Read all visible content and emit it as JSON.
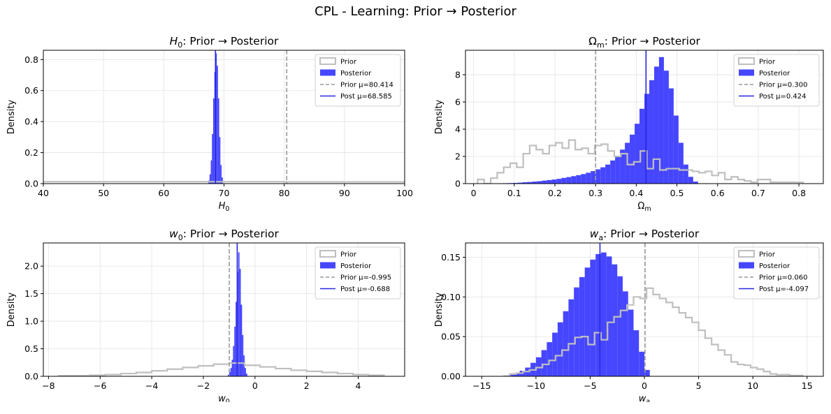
{
  "suptitle": "CPL - Learning: Prior → Posterior",
  "colors": {
    "prior": "#bfbfbf",
    "posterior": "#4646ff",
    "prior_mean_line": "#999999",
    "post_mean_line": "#2828e0",
    "grid": "#e3e3e3"
  },
  "chart_data": [
    {
      "type": "histogram",
      "title_var": "H",
      "title_sub": "0",
      "title_rest": ": Prior → Posterior",
      "xlabel_var": "H",
      "xlabel_sub": "0",
      "ylabel": "Density",
      "xlim": [
        40,
        100
      ],
      "ylim": [
        0,
        0.86
      ],
      "xticks": [
        40,
        50,
        60,
        70,
        80,
        90,
        100
      ],
      "yticks": [
        0.0,
        0.2,
        0.4,
        0.6,
        0.8
      ],
      "ytick_decimals": 1,
      "grid": true,
      "legend_position": "upper right",
      "legend": [
        "Prior",
        "Posterior",
        "Prior μ=80.414",
        "Post μ=68.585"
      ],
      "prior_mean": 80.414,
      "post_mean": 68.585,
      "prior_hist": {
        "edges": [
          20,
          40,
          50,
          60,
          70,
          80,
          90,
          100,
          120
        ],
        "heights": [
          0.012,
          0.012,
          0.012,
          0.012,
          0.012,
          0.011,
          0.011,
          0.011
        ]
      },
      "posterior_hist": {
        "edges": [
          67.4,
          67.6,
          67.8,
          68.0,
          68.2,
          68.4,
          68.6,
          68.8,
          69.0,
          69.2,
          69.4,
          69.6,
          69.8
        ],
        "heights": [
          0.02,
          0.06,
          0.15,
          0.32,
          0.55,
          0.72,
          0.84,
          0.76,
          0.55,
          0.3,
          0.12,
          0.04
        ]
      }
    },
    {
      "type": "histogram",
      "title_var": "Ω",
      "title_sub": "m",
      "title_rest": ": Prior → Posterior",
      "xlabel_var": "Ω",
      "xlabel_sub": "m",
      "ylabel": "Density",
      "xlim": [
        -0.02,
        0.86
      ],
      "ylim": [
        0,
        9.8
      ],
      "xticks": [
        0.0,
        0.1,
        0.2,
        0.3,
        0.4,
        0.5,
        0.6,
        0.7,
        0.8
      ],
      "yticks": [
        0,
        2,
        4,
        6,
        8
      ],
      "ytick_decimals": 0,
      "grid": true,
      "legend_position": "upper right",
      "legend": [
        "Prior",
        "Posterior",
        "Prior μ=0.300",
        "Post μ=0.424"
      ],
      "prior_mean": 0.3,
      "post_mean": 0.424,
      "prior_hist": {
        "edges": [
          0.01,
          0.026,
          0.042,
          0.058,
          0.074,
          0.09,
          0.106,
          0.122,
          0.138,
          0.154,
          0.17,
          0.186,
          0.202,
          0.218,
          0.234,
          0.25,
          0.266,
          0.282,
          0.298,
          0.314,
          0.33,
          0.346,
          0.362,
          0.378,
          0.394,
          0.41,
          0.426,
          0.442,
          0.458,
          0.474,
          0.49,
          0.506,
          0.522,
          0.538,
          0.554,
          0.57,
          0.586,
          0.602,
          0.618,
          0.634,
          0.65,
          0.666,
          0.682,
          0.698,
          0.714,
          0.73,
          0.746,
          0.762,
          0.778,
          0.794,
          0.81
        ],
        "heights": [
          0.3,
          0.0,
          0.4,
          0.8,
          1.2,
          1.5,
          1.2,
          2.2,
          2.8,
          2.5,
          2.2,
          2.8,
          3.0,
          2.6,
          3.2,
          2.5,
          2.6,
          2.2,
          2.8,
          2.9,
          2.4,
          2.0,
          2.2,
          1.4,
          1.6,
          2.4,
          1.1,
          1.8,
          1.0,
          1.1,
          1.1,
          1.0,
          1.0,
          0.9,
          0.8,
          0.9,
          0.6,
          0.8,
          0.3,
          0.5,
          0.3,
          0.2,
          0.1,
          0.3,
          0.3,
          0.1,
          0.1,
          0.1,
          0.1,
          0.1
        ]
      },
      "posterior_hist": {
        "edges": [
          0.06,
          0.072,
          0.084,
          0.096,
          0.108,
          0.12,
          0.132,
          0.144,
          0.156,
          0.168,
          0.18,
          0.192,
          0.204,
          0.216,
          0.228,
          0.24,
          0.252,
          0.264,
          0.276,
          0.288,
          0.3,
          0.312,
          0.324,
          0.336,
          0.348,
          0.36,
          0.372,
          0.384,
          0.396,
          0.408,
          0.42,
          0.432,
          0.444,
          0.456,
          0.468,
          0.48,
          0.492,
          0.504,
          0.516,
          0.528,
          0.54,
          0.552
        ],
        "heights": [
          0.02,
          0.03,
          0.04,
          0.05,
          0.07,
          0.1,
          0.12,
          0.15,
          0.18,
          0.22,
          0.26,
          0.3,
          0.35,
          0.42,
          0.48,
          0.55,
          0.62,
          0.7,
          0.8,
          0.92,
          1.05,
          1.2,
          1.4,
          1.7,
          2.0,
          2.5,
          3.0,
          3.6,
          4.4,
          5.5,
          6.6,
          7.6,
          8.6,
          9.3,
          8.3,
          7.0,
          5.0,
          3.0,
          1.4,
          0.5,
          0.15
        ]
      }
    },
    {
      "type": "histogram",
      "title_var": "w",
      "title_sub": "0",
      "title_rest": ": Prior → Posterior",
      "xlabel_var": "w",
      "xlabel_sub": "0",
      "ylabel": "Density",
      "xlim": [
        -8.2,
        5.8
      ],
      "ylim": [
        0,
        2.42
      ],
      "xticks": [
        -8,
        -6,
        -4,
        -2,
        0,
        2,
        4
      ],
      "yticks": [
        0.0,
        0.5,
        1.0,
        1.5,
        2.0
      ],
      "ytick_decimals": 1,
      "grid": true,
      "legend_position": "upper right",
      "legend": [
        "Prior",
        "Posterior",
        "Prior μ=-0.995",
        "Post μ=-0.688"
      ],
      "prior_mean": -0.995,
      "post_mean": -0.688,
      "prior_hist": {
        "edges": [
          -7.6,
          -7.0,
          -6.4,
          -5.8,
          -5.2,
          -4.6,
          -4.0,
          -3.4,
          -2.8,
          -2.2,
          -1.6,
          -1.0,
          -0.4,
          0.2,
          0.8,
          1.4,
          2.0,
          2.6,
          3.2,
          3.8,
          4.4,
          5.0
        ],
        "heights": [
          0.01,
          0.01,
          0.02,
          0.03,
          0.05,
          0.07,
          0.1,
          0.13,
          0.16,
          0.19,
          0.22,
          0.24,
          0.2,
          0.17,
          0.14,
          0.11,
          0.09,
          0.07,
          0.05,
          0.03,
          0.02
        ]
      },
      "posterior_hist": {
        "edges": [
          -1.05,
          -1.0,
          -0.95,
          -0.9,
          -0.85,
          -0.8,
          -0.75,
          -0.7,
          -0.65,
          -0.6,
          -0.55,
          -0.5,
          -0.45,
          -0.4,
          -0.35,
          -0.3
        ],
        "heights": [
          0.03,
          0.08,
          0.15,
          0.3,
          0.55,
          0.9,
          1.35,
          1.9,
          2.25,
          1.95,
          1.3,
          0.75,
          0.38,
          0.15,
          0.05
        ]
      }
    },
    {
      "type": "histogram",
      "title_var": "w",
      "title_sub": "a",
      "title_rest": ": Prior → Posterior",
      "xlabel_var": "w",
      "xlabel_sub": "a",
      "ylabel": "Density",
      "xlim": [
        -16.5,
        16.5
      ],
      "ylim": [
        0,
        0.168
      ],
      "xticks": [
        -15,
        -10,
        -5,
        0,
        5,
        10,
        15
      ],
      "yticks": [
        0.0,
        0.05,
        0.1,
        0.15
      ],
      "ytick_decimals": 2,
      "grid": true,
      "legend_position": "upper right",
      "legend": [
        "Prior",
        "Posterior",
        "Prior μ=0.060",
        "Post μ=-4.097"
      ],
      "prior_mean": 0.06,
      "post_mean": -4.097,
      "prior_hist": {
        "edges": [
          -13.0,
          -12.4,
          -11.8,
          -11.2,
          -10.6,
          -10.0,
          -9.4,
          -8.8,
          -8.2,
          -7.6,
          -7.0,
          -6.4,
          -5.8,
          -5.2,
          -4.6,
          -4.0,
          -3.4,
          -2.8,
          -2.2,
          -1.6,
          -1.0,
          -0.4,
          0.2,
          0.8,
          1.4,
          2.0,
          2.6,
          3.2,
          3.8,
          4.4,
          5.0,
          5.6,
          6.2,
          6.8,
          7.4,
          8.0,
          8.6,
          9.2,
          9.8,
          10.4,
          11.0,
          11.6,
          12.2,
          12.8,
          13.4,
          14.0,
          14.6
        ],
        "heights": [
          0.0,
          0.003,
          0.004,
          0.006,
          0.008,
          0.011,
          0.015,
          0.02,
          0.026,
          0.033,
          0.041,
          0.049,
          0.05,
          0.04,
          0.055,
          0.046,
          0.068,
          0.075,
          0.083,
          0.09,
          0.1,
          0.098,
          0.111,
          0.103,
          0.098,
          0.093,
          0.087,
          0.08,
          0.074,
          0.068,
          0.058,
          0.048,
          0.04,
          0.033,
          0.027,
          0.018,
          0.015,
          0.014,
          0.011,
          0.009,
          0.006,
          0.003,
          0.002,
          0.002,
          0.001,
          0.001
        ]
      },
      "posterior_hist": {
        "edges": [
          -13.0,
          -12.5,
          -12.0,
          -11.5,
          -11.0,
          -10.5,
          -10.0,
          -9.5,
          -9.0,
          -8.5,
          -8.0,
          -7.5,
          -7.0,
          -6.5,
          -6.0,
          -5.5,
          -5.0,
          -4.5,
          -4.0,
          -3.5,
          -3.0,
          -2.5,
          -2.0,
          -1.5,
          -1.0,
          -0.5,
          0.0,
          0.5
        ],
        "heights": [
          0.001,
          0.002,
          0.004,
          0.007,
          0.011,
          0.017,
          0.024,
          0.033,
          0.043,
          0.055,
          0.068,
          0.082,
          0.097,
          0.112,
          0.125,
          0.137,
          0.147,
          0.154,
          0.156,
          0.151,
          0.141,
          0.126,
          0.107,
          0.084,
          0.058,
          0.031,
          0.008
        ]
      }
    }
  ]
}
